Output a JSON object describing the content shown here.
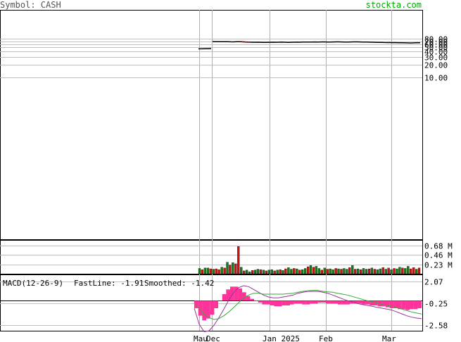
{
  "header": {
    "symbol_label": "Symbol: CASH",
    "site": "stockta.com"
  },
  "indicator": {
    "name": "MACD(12-26-9)",
    "fastline": "FastLine: -1.91",
    "smoothed": "Smoothed: -1.42"
  },
  "colors": {
    "up_volume": "#1a7a1a",
    "down_volume": "#cc1111",
    "histogram": "#ff3399",
    "fastline": "#993399",
    "smoothed": "#33aa33",
    "header_text": "#555555",
    "site_text": "#00aa00",
    "fastline_label": "#993399",
    "smoothed_label": "#00aa00"
  },
  "chart_data": {
    "type": "line",
    "price_axis": {
      "scale": "log",
      "tick_labels": [
        "80.00",
        "70.00",
        "60.00",
        "50.00",
        "40.00",
        "30.00",
        "20.00",
        "10.00"
      ],
      "ticks": [
        80,
        70,
        60,
        50,
        40,
        30,
        20,
        10
      ]
    },
    "volume_axis": {
      "tick_labels": [
        "0.68 M",
        "0.46 M",
        "0.23 M"
      ],
      "ticks": [
        0.68,
        0.46,
        0.23
      ],
      "unit": "M"
    },
    "macd_axis": {
      "tick_labels": [
        "2.07",
        "-0.25",
        "-2.58"
      ],
      "ticks": [
        2.07,
        -0.25,
        -2.58
      ],
      "ylim": [
        -3.2,
        2.8
      ]
    },
    "x_labels": [
      "Mau",
      "Dec",
      "Jan 2025",
      "Feb",
      "Mar"
    ],
    "price": {
      "gap_segment": [
        46.4,
        46.4,
        46.6,
        46.8,
        47.2
      ],
      "values": [
        68.5,
        68.3,
        68.0,
        67.9,
        68.1,
        68.2,
        67.8,
        67.5,
        67.9,
        68.1,
        67.7,
        66.9,
        66.5,
        66.2,
        65.9,
        66.1,
        66.0,
        65.8,
        65.7,
        65.9,
        66.3,
        66.0,
        66.2,
        66.4,
        66.1,
        65.8,
        66.0,
        66.2,
        66.5,
        66.3,
        66.6,
        66.8,
        66.7,
        66.9,
        67.2,
        67.0,
        67.3,
        67.4,
        67.1,
        67.0,
        67.2,
        67.5,
        67.6,
        67.3,
        67.1,
        66.9,
        67.2,
        67.4,
        67.6,
        67.3,
        67.0,
        66.8,
        66.5,
        66.3,
        66.0,
        65.8,
        65.6,
        65.3,
        65.1,
        64.9,
        64.7,
        64.8,
        64.5,
        64.3,
        64.0,
        63.8,
        63.6,
        63.9,
        64.2,
        64.5
      ]
    },
    "volume": [
      0.13,
      0.1,
      0.14,
      0.14,
      0.12,
      0.11,
      0.12,
      0.1,
      0.16,
      0.14,
      0.28,
      0.21,
      0.27,
      0.24,
      0.66,
      0.16,
      0.07,
      0.09,
      0.05,
      0.08,
      0.09,
      0.11,
      0.1,
      0.09,
      0.07,
      0.09,
      0.1,
      0.07,
      0.09,
      0.1,
      0.08,
      0.12,
      0.15,
      0.11,
      0.13,
      0.12,
      0.09,
      0.1,
      0.13,
      0.17,
      0.2,
      0.16,
      0.18,
      0.13,
      0.09,
      0.14,
      0.11,
      0.12,
      0.1,
      0.13,
      0.12,
      0.11,
      0.13,
      0.11,
      0.15,
      0.2,
      0.11,
      0.12,
      0.1,
      0.13,
      0.11,
      0.12,
      0.14,
      0.11,
      0.1,
      0.12,
      0.15,
      0.11,
      0.14,
      0.1,
      0.13,
      0.12,
      0.16,
      0.14,
      0.13,
      0.18,
      0.12,
      0.15,
      0.11,
      0.14
    ],
    "volume_up": [
      true,
      false,
      true,
      true,
      false,
      true,
      false,
      false,
      true,
      false,
      true,
      false,
      true,
      false,
      false,
      true,
      false,
      true,
      true,
      false,
      true,
      true,
      false,
      true,
      false,
      true,
      true,
      false,
      true,
      false,
      true,
      false,
      true,
      true,
      false,
      true,
      false,
      true,
      true,
      false,
      true,
      false,
      true,
      true,
      false,
      true,
      false,
      true,
      true,
      false,
      true,
      false,
      true,
      true,
      false,
      true,
      false,
      true,
      false,
      true,
      true,
      false,
      true,
      false,
      true,
      true,
      false,
      true,
      false,
      true,
      false,
      true,
      true,
      false,
      true,
      true,
      false,
      false,
      true,
      false
    ],
    "macd_hist": [
      -0.8,
      -1.6,
      -2.1,
      -1.9,
      -1.5,
      -0.8,
      0.0,
      0.7,
      1.2,
      1.5,
      1.5,
      1.3,
      0.9,
      0.5,
      0.2,
      -0.05,
      -0.2,
      -0.4,
      -0.4,
      -0.5,
      -0.6,
      -0.6,
      -0.5,
      -0.5,
      -0.4,
      -0.3,
      -0.3,
      -0.4,
      -0.4,
      -0.3,
      -0.3,
      -0.2,
      -0.2,
      -0.3,
      -0.3,
      -0.3,
      -0.4,
      -0.4,
      -0.4,
      -0.3,
      -0.3,
      -0.3,
      -0.4,
      -0.4,
      -0.5,
      -0.5,
      -0.6,
      -0.6,
      -0.7,
      -0.8,
      -0.8,
      -0.9,
      -0.9,
      -1.0,
      -0.9,
      -0.9,
      -0.8
    ],
    "macd_fast": [
      -0.8,
      -2.5,
      -3.3,
      -3.2,
      -2.6,
      -1.8,
      -0.9,
      0.1,
      0.9,
      1.4,
      1.6,
      1.5,
      1.2,
      0.9,
      0.6,
      0.4,
      0.3,
      0.3,
      0.4,
      0.5,
      0.6,
      0.8,
      0.9,
      1.0,
      1.0,
      1.0,
      0.9,
      0.8,
      0.6,
      0.4,
      0.2,
      0.0,
      -0.1,
      -0.3,
      -0.4,
      -0.5,
      -0.6,
      -0.7,
      -0.8,
      -0.9,
      -1.0,
      -1.2,
      -1.4,
      -1.6,
      -1.75,
      -1.85,
      -1.91
    ],
    "macd_smooth": [
      -0.3,
      -0.8,
      -1.4,
      -1.8,
      -2.0,
      -1.9,
      -1.6,
      -1.2,
      -0.7,
      -0.2,
      0.3,
      0.6,
      0.8,
      0.8,
      0.7,
      0.7,
      0.7,
      0.7,
      0.7,
      0.75,
      0.8,
      0.9,
      1.0,
      1.05,
      1.1,
      1.1,
      1.0,
      0.95,
      0.9,
      0.8,
      0.7,
      0.6,
      0.45,
      0.3,
      0.15,
      0.0,
      -0.1,
      -0.25,
      -0.4,
      -0.5,
      -0.6,
      -0.75,
      -0.9,
      -1.05,
      -1.2,
      -1.32,
      -1.42
    ]
  }
}
